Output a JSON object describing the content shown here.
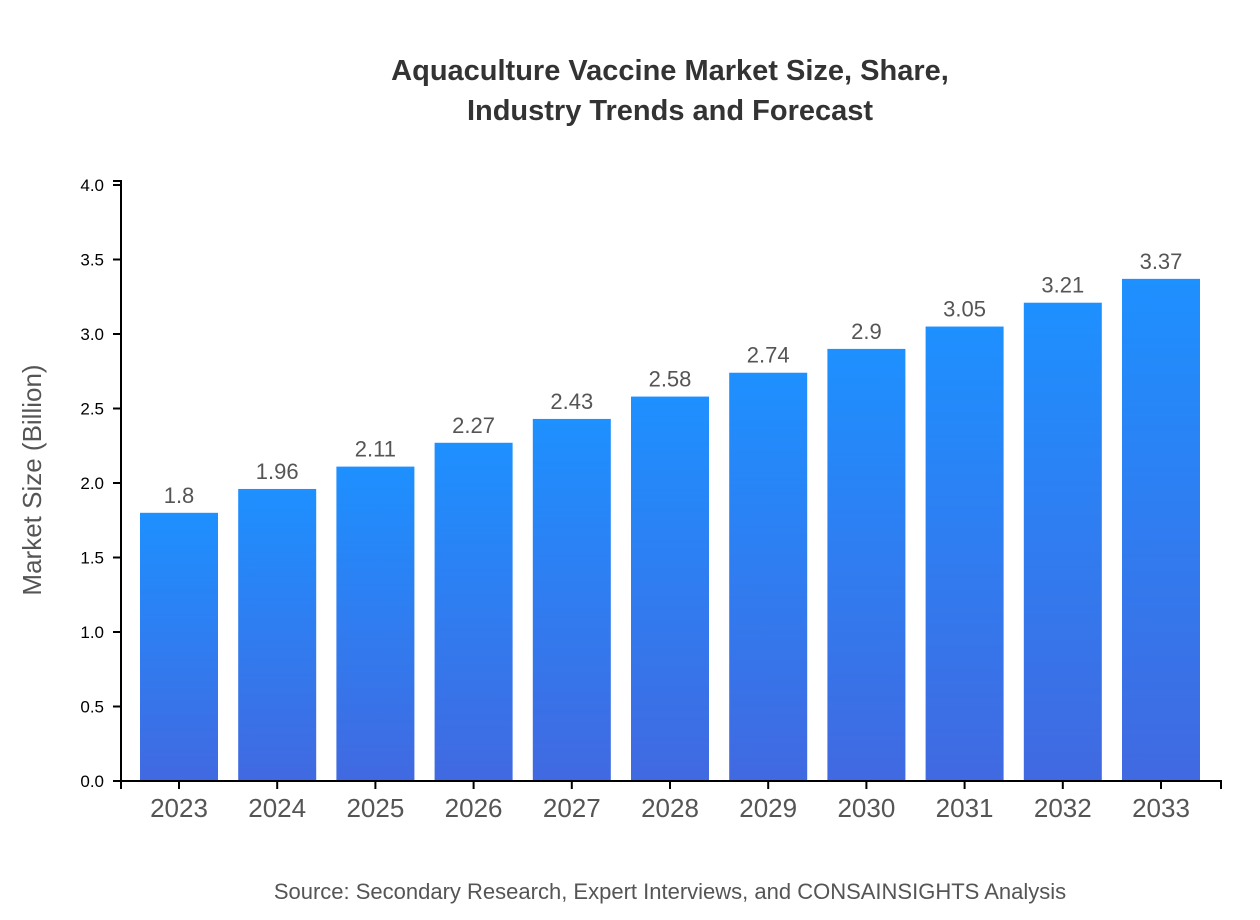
{
  "chart_data": {
    "type": "bar",
    "title_lines": [
      "Aquaculture Vaccine Market Size, Share,",
      "Industry Trends and Forecast"
    ],
    "categories": [
      "2023",
      "2024",
      "2025",
      "2026",
      "2027",
      "2028",
      "2029",
      "2030",
      "2031",
      "2032",
      "2033"
    ],
    "values": [
      1.8,
      1.96,
      2.11,
      2.27,
      2.43,
      2.58,
      2.74,
      2.9,
      3.05,
      3.21,
      3.37
    ],
    "data_labels": [
      "1.8",
      "1.96",
      "2.11",
      "2.27",
      "2.43",
      "2.58",
      "2.74",
      "2.9",
      "3.05",
      "3.21",
      "3.37"
    ],
    "xlabel": "",
    "ylabel": "Market Size (Billion)",
    "ylim": [
      0,
      4.0
    ],
    "yticks": [
      "0.0",
      "0.5",
      "1.0",
      "1.5",
      "2.0",
      "2.5",
      "3.0",
      "3.5",
      "4.0"
    ],
    "grid": false,
    "colors": {
      "bar_top": "#1e90ff",
      "bar_bottom": "#4169e1"
    },
    "source": "Source: Secondary Research, Expert Interviews, and CONSAINSIGHTS Analysis"
  }
}
